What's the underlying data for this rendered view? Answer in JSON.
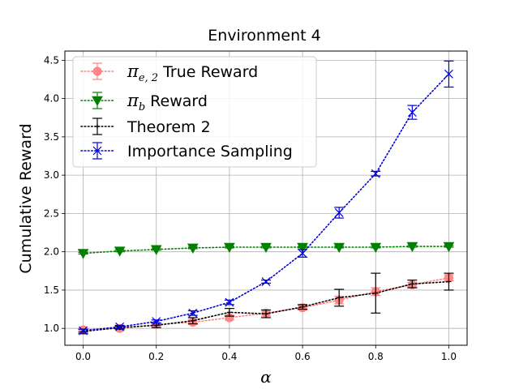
{
  "chart_data": {
    "type": "line",
    "title": "Environment 4",
    "xlabel": "α",
    "ylabel": "Cumulative Reward",
    "xlim": [
      -0.05,
      1.05
    ],
    "ylim": [
      0.78,
      4.62
    ],
    "grid": true,
    "legend_position": "top-left",
    "xticks": [
      "0.0",
      "0.2",
      "0.4",
      "0.6",
      "0.8",
      "1.0"
    ],
    "xtick_values": [
      0.0,
      0.2,
      0.4,
      0.6,
      0.8,
      1.0
    ],
    "yticks": [
      "1.0",
      "1.5",
      "2.0",
      "2.5",
      "3.0",
      "3.5",
      "4.0",
      "4.5"
    ],
    "ytick_values": [
      1.0,
      1.5,
      2.0,
      2.5,
      3.0,
      3.5,
      4.0,
      4.5
    ],
    "x": [
      0.0,
      0.1,
      0.2,
      0.3,
      0.4,
      0.5,
      0.6,
      0.7,
      0.8,
      0.9,
      1.0
    ],
    "series": [
      {
        "name": "π_{e,2} True Reward",
        "legend_main": "π",
        "legend_sub": "e, 2",
        "legend_rest": " True Reward",
        "color": "#ff7f7f",
        "marker": "circle",
        "values": [
          0.98,
          1.0,
          1.05,
          1.08,
          1.14,
          1.2,
          1.27,
          1.37,
          1.48,
          1.57,
          1.66
        ],
        "errors": [
          0.02,
          0.02,
          0.02,
          0.03,
          0.03,
          0.04,
          0.03,
          0.05,
          0.05,
          0.03,
          0.04
        ]
      },
      {
        "name": "π_b Reward",
        "legend_main": "π",
        "legend_sub": "b",
        "legend_rest": " Reward",
        "color": "#008000",
        "marker": "triangle_down",
        "values": [
          1.98,
          2.01,
          2.03,
          2.05,
          2.06,
          2.06,
          2.06,
          2.06,
          2.06,
          2.07,
          2.07
        ],
        "errors": [
          0.01,
          0.01,
          0.01,
          0.01,
          0.01,
          0.01,
          0.01,
          0.01,
          0.01,
          0.01,
          0.01
        ]
      },
      {
        "name": "Theorem 2",
        "color": "#000000",
        "marker": "plus",
        "values": [
          0.96,
          1.01,
          1.04,
          1.1,
          1.21,
          1.19,
          1.28,
          1.4,
          1.46,
          1.58,
          1.61
        ],
        "errors": [
          0.03,
          0.02,
          0.03,
          0.04,
          0.05,
          0.05,
          0.03,
          0.11,
          0.26,
          0.05,
          0.11
        ]
      },
      {
        "name": "Importance Sampling",
        "color": "#0000dd",
        "marker": "x",
        "values": [
          0.97,
          1.02,
          1.09,
          1.2,
          1.34,
          1.61,
          1.98,
          2.51,
          3.02,
          3.82,
          4.32
        ],
        "errors": [
          0.02,
          0.02,
          0.02,
          0.03,
          0.03,
          0.02,
          0.05,
          0.07,
          0.03,
          0.09,
          0.17
        ]
      }
    ]
  }
}
